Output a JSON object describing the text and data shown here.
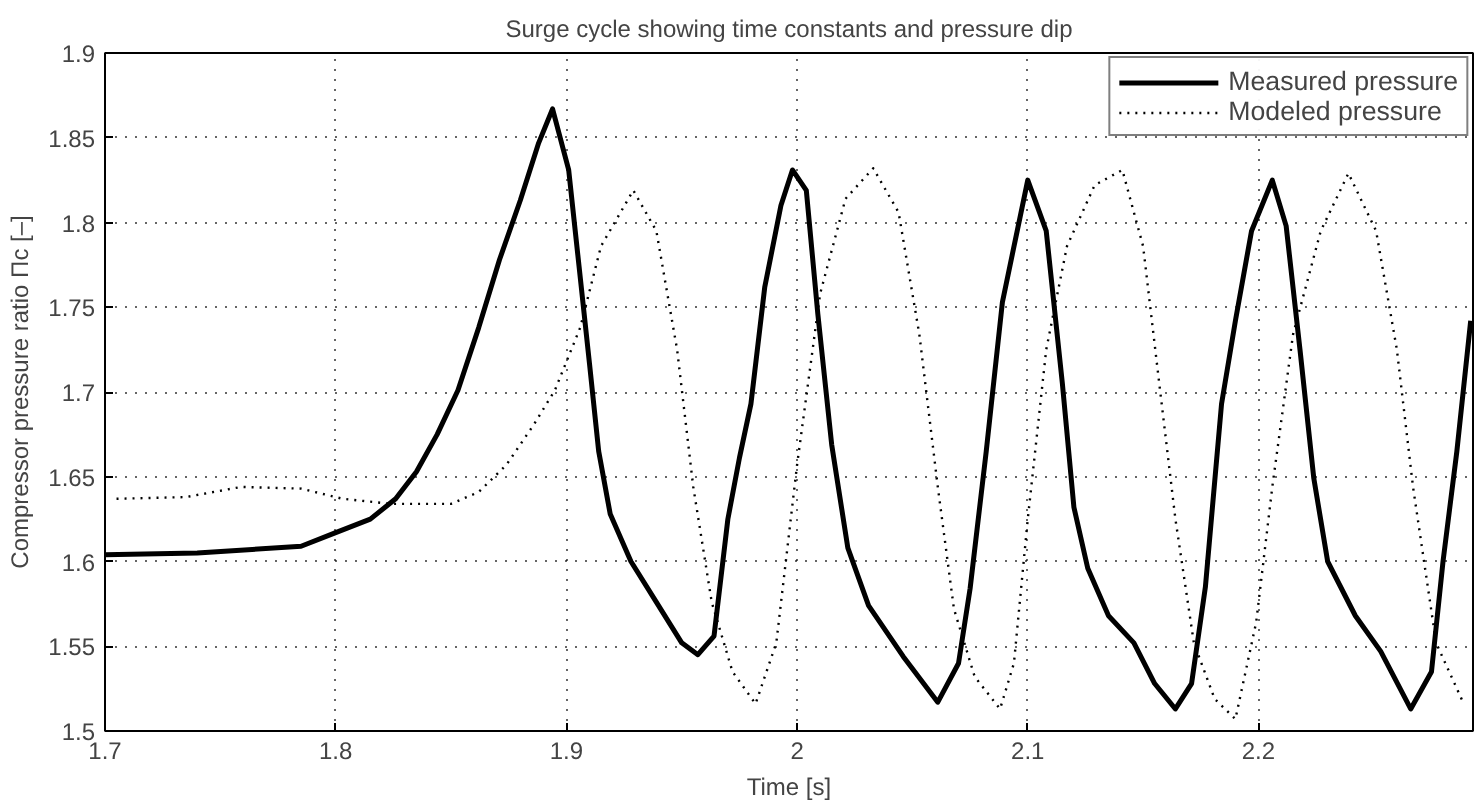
{
  "chart_data": {
    "type": "line",
    "title": "Surge cycle showing time constants and pressure dip",
    "xlabel": "Time [s]",
    "ylabel": "Compressor pressure ratio Πc [–]",
    "xlim": [
      1.7,
      2.293
    ],
    "ylim": [
      1.5,
      1.9
    ],
    "xticks": [
      1.7,
      1.8,
      1.9,
      2,
      2.1,
      2.2
    ],
    "yticks": [
      1.5,
      1.55,
      1.6,
      1.65,
      1.7,
      1.75,
      1.8,
      1.85,
      1.9
    ],
    "grid": true,
    "legend": "top right",
    "series": [
      {
        "name": "Measured pressure",
        "color": "#000000",
        "line_style": "solid",
        "x": [
          1.7,
          1.74,
          1.785,
          1.8,
          1.815,
          1.826,
          1.835,
          1.844,
          1.853,
          1.862,
          1.871,
          1.88,
          1.888,
          1.894,
          1.901,
          1.9055,
          1.91,
          1.914,
          1.919,
          1.928,
          1.939,
          1.95,
          1.957,
          1.964,
          1.97,
          1.975,
          1.98,
          1.986,
          1.993,
          1.998,
          2.004,
          2.009,
          2.015,
          2.022,
          2.031,
          2.046,
          2.061,
          2.07,
          2.075,
          2.082,
          2.089,
          2.1,
          2.108,
          2.115,
          2.12,
          2.126,
          2.135,
          2.146,
          2.155,
          2.164,
          2.171,
          2.177,
          2.184,
          2.19,
          2.197,
          2.206,
          2.212,
          2.218,
          2.224,
          2.23,
          2.242,
          2.253,
          2.266,
          2.275,
          2.28,
          2.286,
          2.292
        ],
        "values": [
          1.604,
          1.605,
          1.609,
          1.617,
          1.625,
          1.637,
          1.653,
          1.675,
          1.701,
          1.738,
          1.778,
          1.813,
          1.847,
          1.867,
          1.831,
          1.774,
          1.717,
          1.665,
          1.628,
          1.6,
          1.576,
          1.552,
          1.545,
          1.556,
          1.625,
          1.661,
          1.693,
          1.762,
          1.81,
          1.831,
          1.819,
          1.746,
          1.669,
          1.608,
          1.574,
          1.544,
          1.517,
          1.54,
          1.584,
          1.665,
          1.753,
          1.825,
          1.795,
          1.705,
          1.632,
          1.596,
          1.568,
          1.552,
          1.528,
          1.513,
          1.528,
          1.585,
          1.693,
          1.742,
          1.795,
          1.825,
          1.798,
          1.725,
          1.649,
          1.6,
          1.568,
          1.547,
          1.513,
          1.535,
          1.6,
          1.665,
          1.742
        ]
      },
      {
        "name": "Modeled pressure",
        "color": "#000000",
        "line_style": "dotted",
        "x": [
          1.705,
          1.735,
          1.759,
          1.785,
          1.803,
          1.824,
          1.85,
          1.862,
          1.874,
          1.886,
          1.895,
          1.906,
          1.915,
          1.929,
          1.939,
          1.948,
          1.955,
          1.963,
          1.972,
          1.982,
          1.991,
          2.0,
          2.01,
          2.021,
          2.033,
          2.044,
          2.053,
          2.061,
          2.068,
          2.077,
          2.088,
          2.094,
          2.1,
          2.108,
          2.117,
          2.129,
          2.141,
          2.15,
          2.157,
          2.164,
          2.172,
          2.181,
          2.19,
          2.199,
          2.206,
          2.215,
          2.227,
          2.239,
          2.251,
          2.26,
          2.267,
          2.277,
          2.289
        ],
        "values": [
          1.637,
          1.638,
          1.644,
          1.643,
          1.637,
          1.634,
          1.634,
          1.641,
          1.657,
          1.681,
          1.701,
          1.738,
          1.786,
          1.819,
          1.795,
          1.725,
          1.644,
          1.576,
          1.535,
          1.516,
          1.552,
          1.657,
          1.758,
          1.814,
          1.832,
          1.806,
          1.734,
          1.644,
          1.572,
          1.532,
          1.513,
          1.54,
          1.625,
          1.725,
          1.786,
          1.822,
          1.831,
          1.786,
          1.705,
          1.625,
          1.552,
          1.519,
          1.507,
          1.564,
          1.644,
          1.734,
          1.795,
          1.829,
          1.795,
          1.725,
          1.644,
          1.552,
          1.516
        ]
      }
    ]
  }
}
